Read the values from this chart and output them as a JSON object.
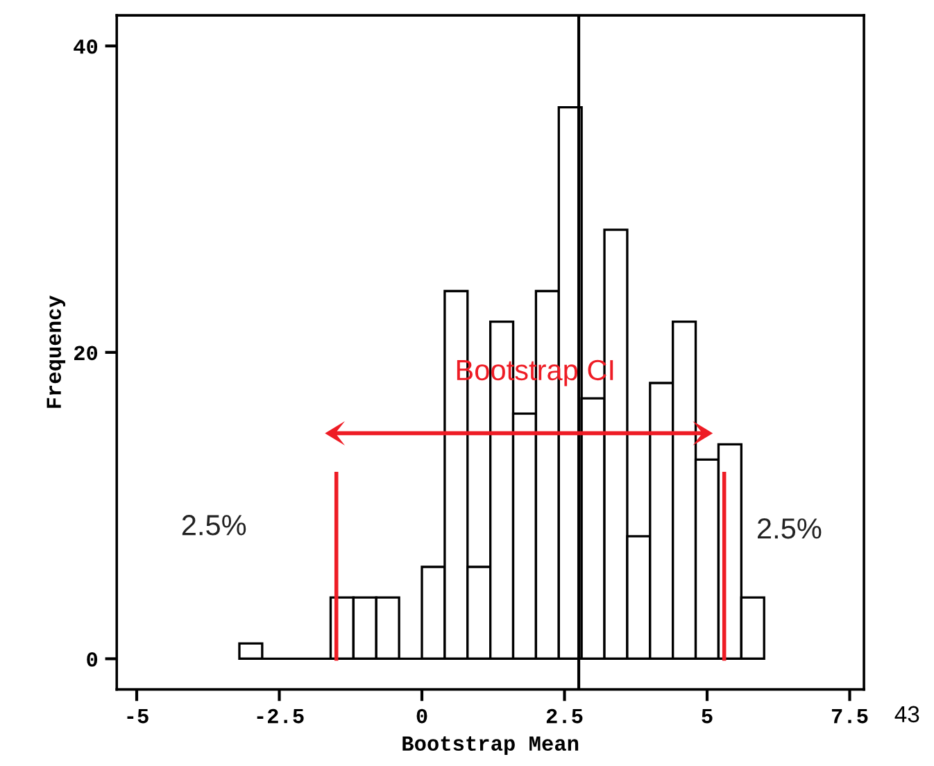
{
  "chart_data": {
    "type": "histogram",
    "xlabel": "Bootstrap Mean",
    "ylabel": "Frequency",
    "bins": [
      -3.2,
      -2.8,
      -2.4,
      -2.0,
      -1.6,
      -1.2,
      -0.8,
      -0.4,
      0,
      0.4,
      0.8,
      1.2,
      1.6,
      2.0,
      2.4,
      2.8,
      3.2,
      3.6,
      4.0,
      4.4,
      4.8,
      5.2,
      5.6,
      6.0
    ],
    "values": [
      1,
      0,
      0,
      0,
      4,
      4,
      4,
      0,
      6,
      24,
      6,
      22,
      16,
      24,
      36,
      17,
      28,
      8,
      18,
      22,
      13,
      14,
      4
    ],
    "color": "#ffffff",
    "xlim": [
      -5.35,
      7.75
    ],
    "ylim": [
      -2,
      42
    ],
    "xticks": [
      -5,
      -2.5,
      0,
      2.5,
      5,
      7.5
    ],
    "yticks": [
      0,
      20,
      40
    ],
    "ref_lines": [
      {
        "axis": "x",
        "value": 2.75,
        "color": "#000000"
      },
      {
        "axis": "x",
        "value": -1.5,
        "color": "#ee1c25"
      },
      {
        "axis": "x",
        "value": 5.3,
        "color": "#ee1c25"
      },
      {
        "axis": "y",
        "value": 0,
        "color": "#000000"
      }
    ],
    "annotations": [
      "Bootstrap CI",
      "2.5%",
      "2.5%",
      "43"
    ],
    "grid": false
  }
}
